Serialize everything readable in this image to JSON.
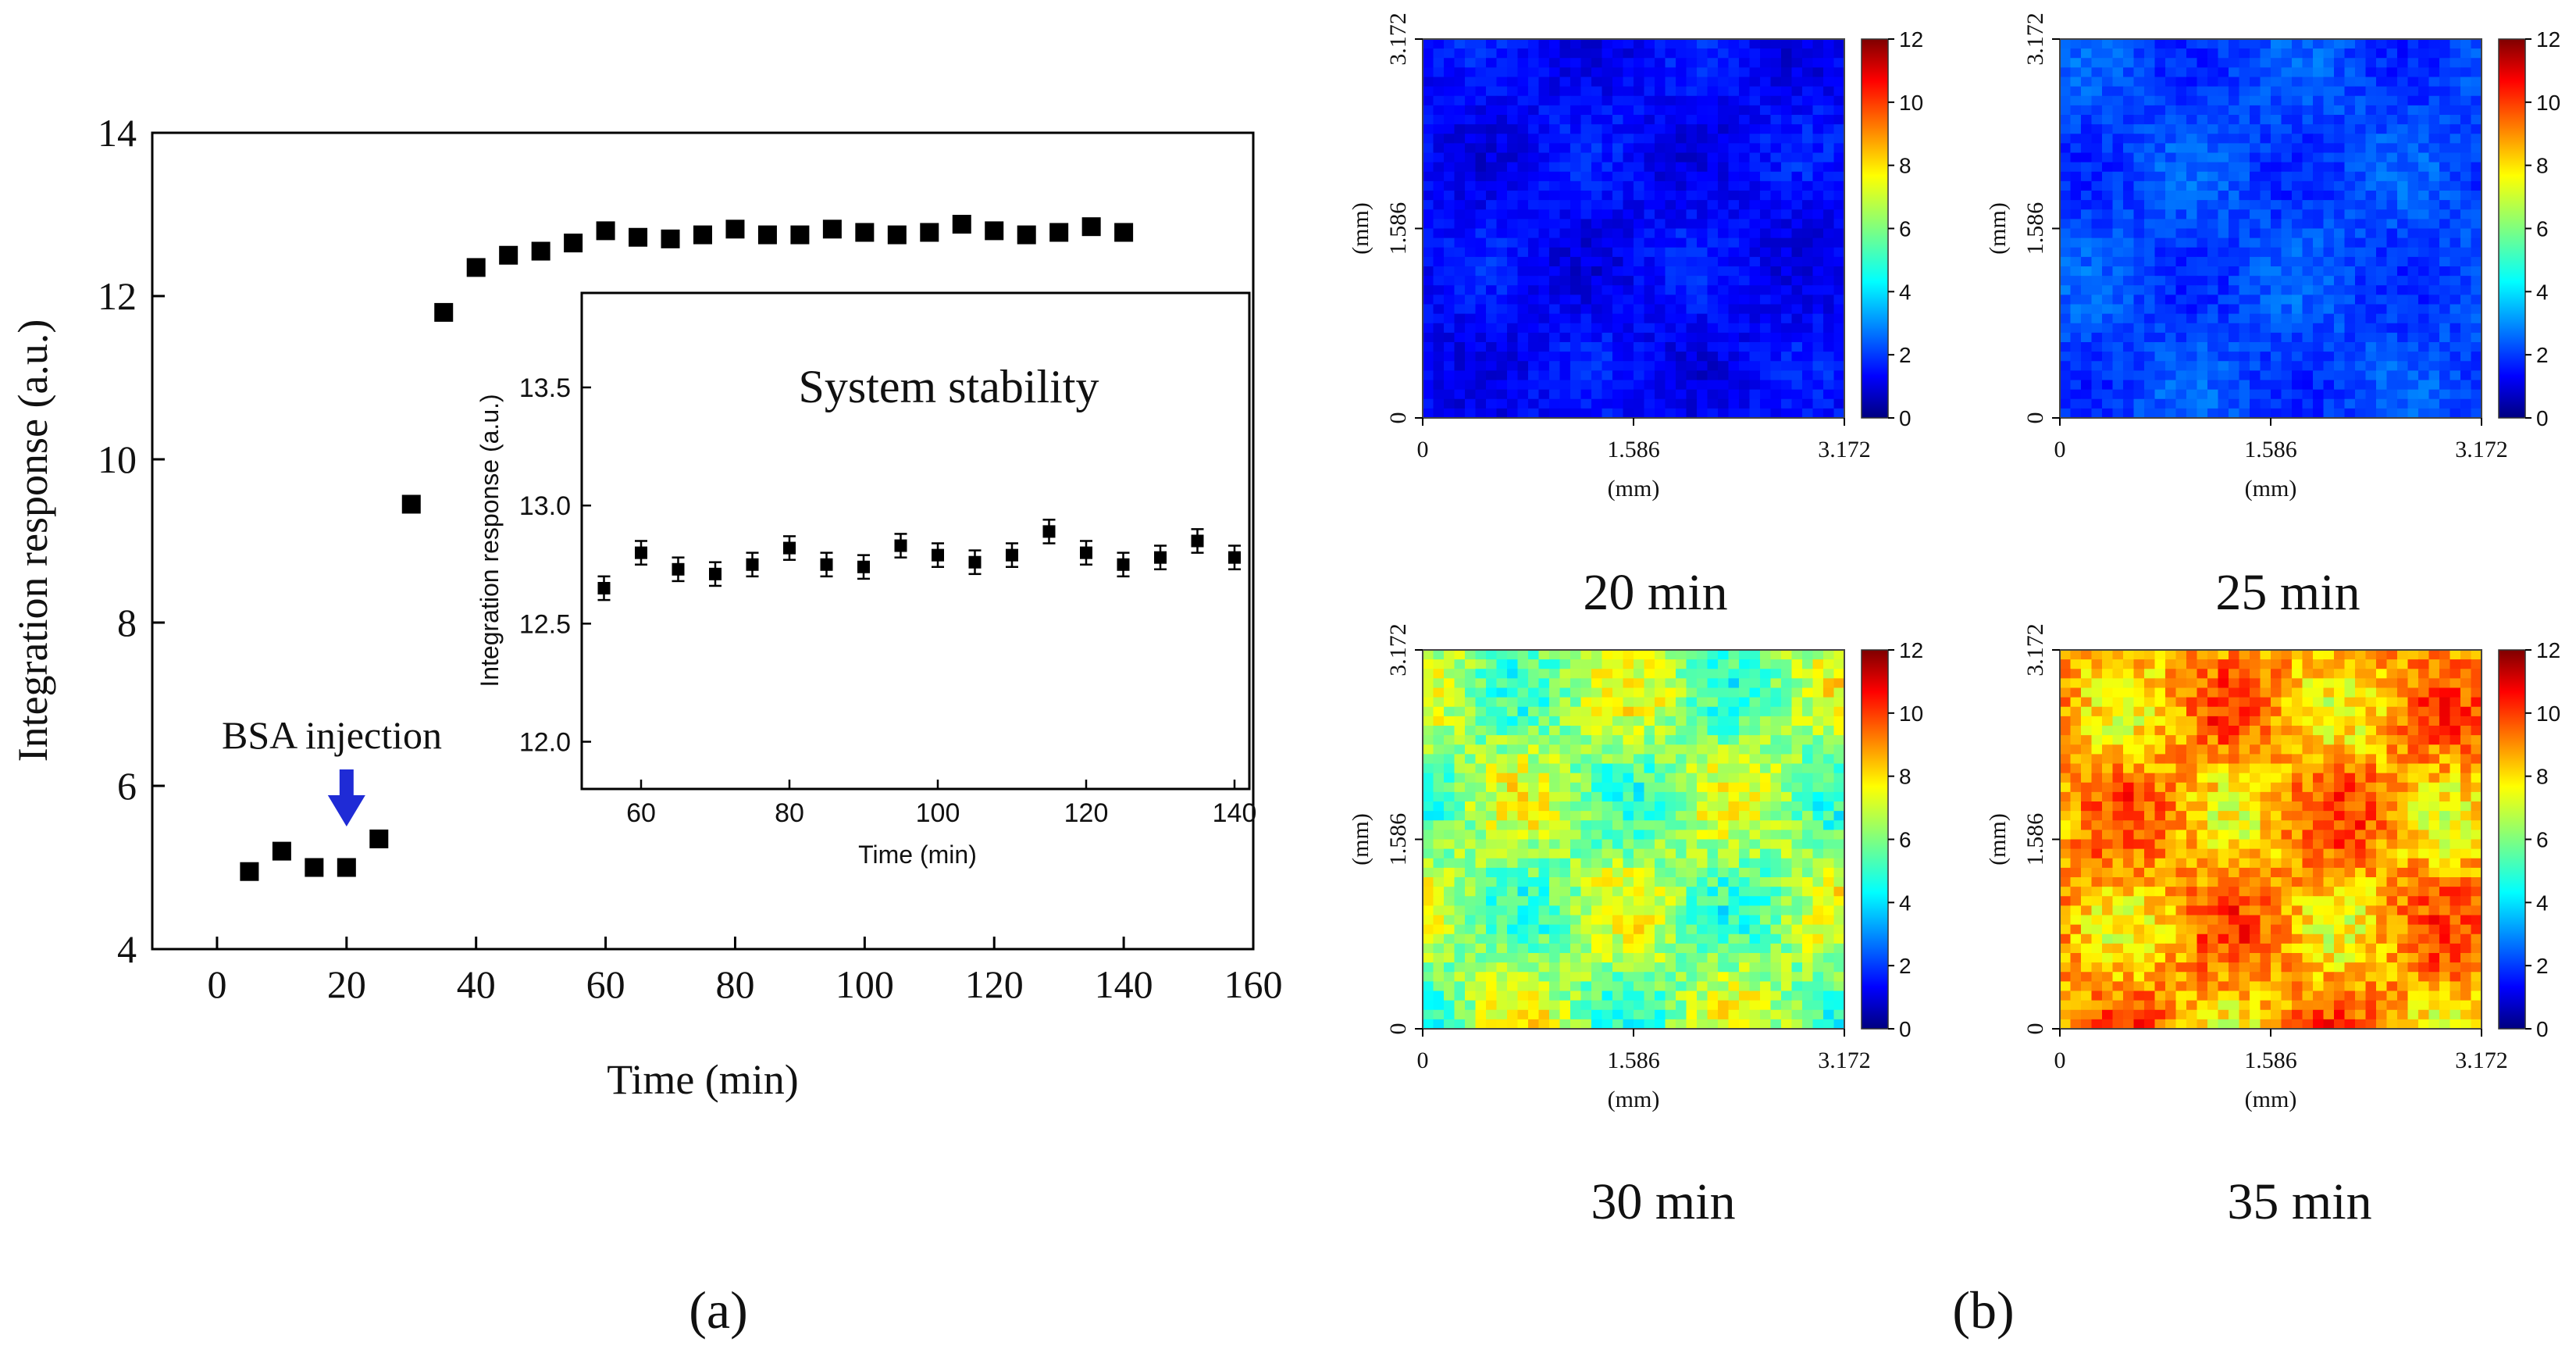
{
  "chart_data": [
    {
      "id": "a",
      "type": "scatter",
      "panel_label": "(a)",
      "xlabel": "Time (min)",
      "ylabel": "Integration response (a.u.)",
      "xlim": [
        -10,
        160
      ],
      "ylim": [
        4,
        14
      ],
      "xticks": [
        0,
        20,
        40,
        60,
        80,
        100,
        120,
        140,
        160
      ],
      "yticks": [
        4,
        6,
        8,
        10,
        12,
        14
      ],
      "annotation": "BSA injection",
      "annotation_x": 20,
      "arrow_color": "#1f2bd6",
      "marker_color": "#000000",
      "series": [
        {
          "name": "response",
          "x": [
            5,
            10,
            15,
            20,
            25,
            30,
            35,
            40,
            45,
            50,
            55,
            60,
            65,
            70,
            75,
            80,
            85,
            90,
            95,
            100,
            105,
            110,
            115,
            120,
            125,
            130,
            135,
            140
          ],
          "y": [
            4.95,
            5.2,
            5.0,
            5.0,
            5.35,
            9.45,
            11.8,
            12.35,
            12.5,
            12.55,
            12.65,
            12.8,
            12.72,
            12.7,
            12.75,
            12.82,
            12.75,
            12.75,
            12.82,
            12.78,
            12.75,
            12.78,
            12.88,
            12.8,
            12.75,
            12.78,
            12.85,
            12.78
          ]
        }
      ]
    },
    {
      "id": "a-inset",
      "type": "scatter",
      "title": "System stability",
      "xlabel": "Time (min)",
      "ylabel": "Integration response (a.u.)",
      "xlim": [
        52,
        142
      ],
      "ylim": [
        11.8,
        13.9
      ],
      "xticks": [
        60,
        80,
        100,
        120,
        140
      ],
      "yticks": [
        12.0,
        12.5,
        13.0,
        13.5
      ],
      "ytick_labels": [
        "12.0",
        "12.5",
        "13.0",
        "13.5"
      ],
      "series": [
        {
          "name": "stability",
          "x": [
            55,
            60,
            65,
            70,
            75,
            80,
            85,
            90,
            95,
            100,
            105,
            110,
            115,
            120,
            125,
            130,
            135,
            140
          ],
          "y": [
            12.65,
            12.8,
            12.73,
            12.71,
            12.75,
            12.82,
            12.75,
            12.74,
            12.83,
            12.79,
            12.76,
            12.79,
            12.89,
            12.8,
            12.75,
            12.78,
            12.85,
            12.78
          ],
          "error": [
            0.05,
            0.05,
            0.05,
            0.05,
            0.05,
            0.05,
            0.05,
            0.05,
            0.05,
            0.05,
            0.05,
            0.05,
            0.05,
            0.05,
            0.05,
            0.05,
            0.05,
            0.05
          ]
        }
      ]
    },
    {
      "id": "b",
      "type": "heatmap",
      "panel_label": "(b)",
      "axis_unit_label": "(mm)",
      "tick_labels": [
        "0",
        "1.586",
        "3.172"
      ],
      "colorbar_ticks": [
        "0",
        "2",
        "4",
        "6",
        "8",
        "10",
        "12"
      ],
      "value_range": [
        0,
        12
      ],
      "colormap": [
        "#00007f",
        "#0000ff",
        "#007fff",
        "#00ffff",
        "#7fff7f",
        "#ffff00",
        "#ff7f00",
        "#ff0000",
        "#7f0000"
      ],
      "maps": [
        {
          "label": "20 min",
          "mean_level": 1.5
        },
        {
          "label": "25 min",
          "mean_level": 2.3
        },
        {
          "label": "30 min",
          "mean_level": 6.2
        },
        {
          "label": "35 min",
          "mean_level": 8.6
        }
      ]
    }
  ]
}
